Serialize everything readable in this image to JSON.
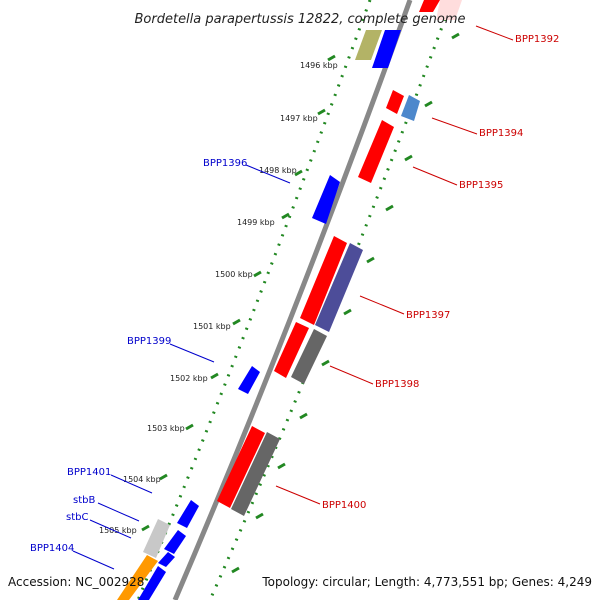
{
  "title": "Bordetella parapertussis 12822, complete genome",
  "footer": {
    "accession": "Accession: NC_002928",
    "topology": "Topology: circular; Length: 4,773,551 bp; Genes: 4,249"
  },
  "ticks": [
    "1496 kbp",
    "1497 kbp",
    "1498 kbp",
    "1499 kbp",
    "1500 kbp",
    "1501 kbp",
    "1502 kbp",
    "1503 kbp",
    "1504 kbp",
    "1505 kbp"
  ],
  "labels": {
    "BPP1392": "BPP1392",
    "BPP1394": "BPP1394",
    "BPP1395": "BPP1395",
    "BPP1396": "BPP1396",
    "BPP1397": "BPP1397",
    "BPP1398": "BPP1398",
    "BPP1399": "BPP1399",
    "BPP1400": "BPP1400",
    "BPP1401": "BPP1401",
    "stbB": "stbB",
    "stbC": "stbC",
    "BPP1404": "BPP1404"
  },
  "colors": {
    "forward_label": "#0000cc",
    "reverse_label": "#cc0000",
    "cds_red": "#ff0000",
    "cds_blue": "#0000ff",
    "gray": "#666666",
    "purple": "#4d4d99",
    "tan": "#b3b366",
    "steelblue": "#4d88cc",
    "orange": "#ff9900",
    "lightgray": "#c8c8c8",
    "backbone": "#888888",
    "dots": "#228822"
  }
}
